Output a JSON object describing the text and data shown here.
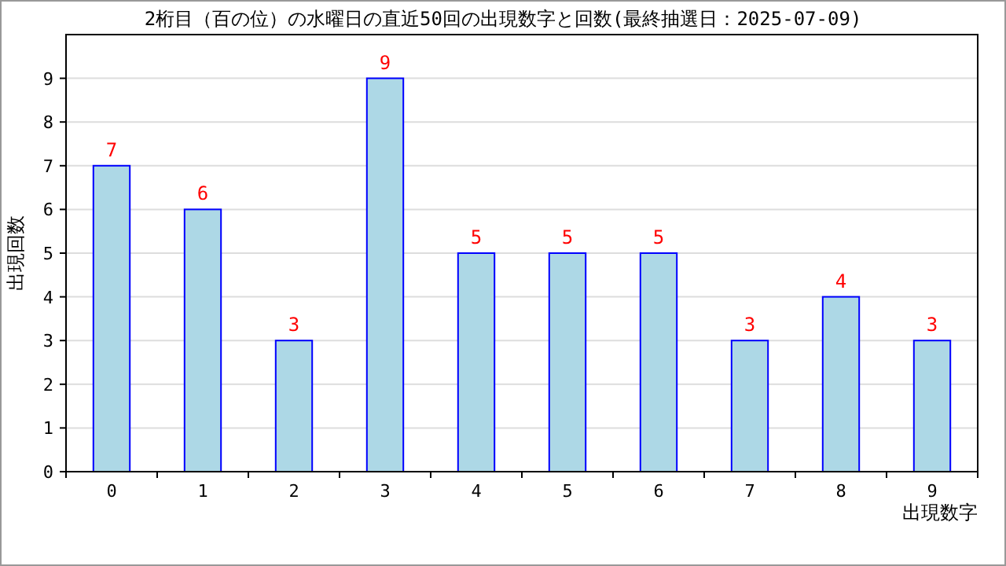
{
  "chart_data": {
    "type": "bar",
    "title": "2桁目（百の位）の水曜日の直近50回の出現数字と回数(最終抽選日：2025-07-09)",
    "xlabel": "出現数字",
    "ylabel": "出現回数",
    "categories": [
      "0",
      "1",
      "2",
      "3",
      "4",
      "5",
      "6",
      "7",
      "8",
      "9"
    ],
    "series": [
      {
        "color": "#add8e6",
        "values": [
          7,
          6,
          3,
          9,
          5,
          5,
          5,
          3,
          4,
          3
        ]
      }
    ],
    "ylim": [
      0,
      10
    ],
    "yticks": [
      0,
      1,
      2,
      3,
      4,
      5,
      6,
      7,
      8,
      9
    ],
    "grid": "y",
    "data_labels": true
  }
}
